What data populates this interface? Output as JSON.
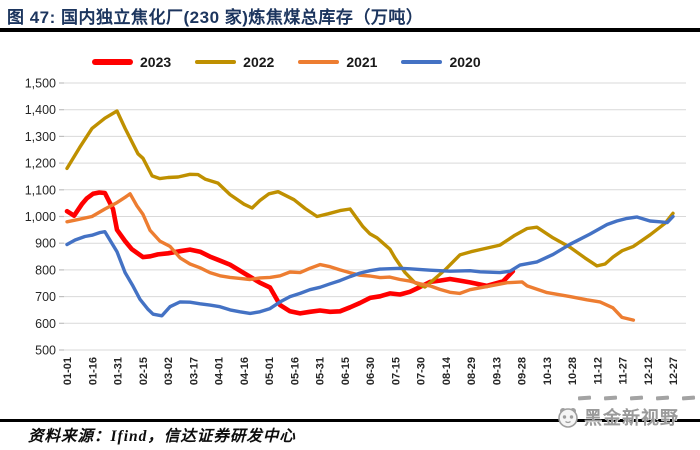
{
  "header": {
    "title": "图 47:  国内独立焦化厂(230 家)炼焦煤总库存（万吨）"
  },
  "footer": {
    "source": "资料来源：Ifind，信达证券研发中心"
  },
  "watermark": {
    "text": "黑金新视野"
  },
  "chart_data": {
    "type": "line",
    "title": "国内独立焦化厂(230 家)炼焦煤总库存（万吨）",
    "xlabel": "",
    "ylabel": "",
    "unit": "万吨",
    "grid": true,
    "legend_position": "top",
    "ylim": [
      500,
      1500
    ],
    "categories": [
      "01-01",
      "01-16",
      "01-31",
      "02-15",
      "03-02",
      "03-17",
      "04-01",
      "04-16",
      "05-01",
      "05-16",
      "05-31",
      "06-15",
      "06-30",
      "07-15",
      "07-30",
      "08-14",
      "08-29",
      "09-13",
      "09-28",
      "10-13",
      "10-28",
      "11-12",
      "11-27",
      "12-12",
      "12-27"
    ],
    "y_axis": {
      "min": 500,
      "max": 1500,
      "step": 100,
      "tick_labels": [
        "1,500",
        "1,400",
        "1,300",
        "1,200",
        "1,100",
        "1,000",
        "900",
        "800",
        "700",
        "600",
        "500"
      ]
    },
    "series": [
      {
        "name": "2023",
        "color": "#ff0000",
        "width": 4.6,
        "points": [
          [
            0,
            1020
          ],
          [
            0.28,
            1003
          ],
          [
            0.6,
            1048
          ],
          [
            0.79,
            1068
          ],
          [
            1.03,
            1085
          ],
          [
            1.28,
            1090
          ],
          [
            1.5,
            1088
          ],
          [
            1.82,
            1028
          ],
          [
            1.98,
            950
          ],
          [
            2.3,
            908
          ],
          [
            2.57,
            877
          ],
          [
            3.01,
            848
          ],
          [
            3.3,
            851
          ],
          [
            3.6,
            858
          ],
          [
            4,
            862
          ],
          [
            4.48,
            870
          ],
          [
            4.87,
            876
          ],
          [
            5.27,
            868
          ],
          [
            5.66,
            850
          ],
          [
            5.98,
            838
          ],
          [
            6.45,
            820
          ],
          [
            7.01,
            788
          ],
          [
            7.64,
            752
          ],
          [
            8.04,
            734
          ],
          [
            8.44,
            668
          ],
          [
            8.83,
            645
          ],
          [
            9.23,
            637
          ],
          [
            9.62,
            643
          ],
          [
            10.02,
            648
          ],
          [
            10.42,
            643
          ],
          [
            10.81,
            645
          ],
          [
            11.21,
            660
          ],
          [
            11.6,
            676
          ],
          [
            12,
            695
          ],
          [
            12.4,
            701
          ],
          [
            12.79,
            712
          ],
          [
            13.19,
            708
          ],
          [
            13.58,
            718
          ],
          [
            13.98,
            736
          ],
          [
            14.38,
            755
          ],
          [
            14.77,
            760
          ],
          [
            15.17,
            766
          ],
          [
            15.56,
            760
          ],
          [
            15.96,
            753
          ],
          [
            16.63,
            740
          ],
          [
            17.27,
            757
          ],
          [
            17.66,
            795
          ]
        ]
      },
      {
        "name": "2022",
        "color": "#bf9000",
        "width": 3.4,
        "points": [
          [
            0,
            1180
          ],
          [
            0.5,
            1258
          ],
          [
            0.99,
            1330
          ],
          [
            1.5,
            1368
          ],
          [
            1.98,
            1395
          ],
          [
            2.3,
            1330
          ],
          [
            2.81,
            1235
          ],
          [
            3.01,
            1218
          ],
          [
            3.37,
            1152
          ],
          [
            3.68,
            1142
          ],
          [
            4,
            1146
          ],
          [
            4.4,
            1148
          ],
          [
            4.87,
            1158
          ],
          [
            5.19,
            1157
          ],
          [
            5.47,
            1140
          ],
          [
            5.98,
            1125
          ],
          [
            6.46,
            1082
          ],
          [
            7.01,
            1046
          ],
          [
            7.33,
            1032
          ],
          [
            7.64,
            1060
          ],
          [
            8,
            1085
          ],
          [
            8.36,
            1093
          ],
          [
            8.99,
            1063
          ],
          [
            9.43,
            1030
          ],
          [
            9.9,
            1000
          ],
          [
            10.34,
            1010
          ],
          [
            10.81,
            1022
          ],
          [
            11.21,
            1028
          ],
          [
            11.72,
            962
          ],
          [
            12,
            935
          ],
          [
            12.28,
            920
          ],
          [
            12.79,
            878
          ],
          [
            12.99,
            845
          ],
          [
            13.39,
            790
          ],
          [
            13.78,
            752
          ],
          [
            14.18,
            736
          ],
          [
            14.46,
            758
          ],
          [
            14.97,
            800
          ],
          [
            15.56,
            856
          ],
          [
            16,
            868
          ],
          [
            16.36,
            876
          ],
          [
            17.15,
            893
          ],
          [
            17.74,
            930
          ],
          [
            18.22,
            955
          ],
          [
            18.61,
            960
          ],
          [
            19.25,
            920
          ],
          [
            19.92,
            885
          ],
          [
            20.51,
            845
          ],
          [
            20.99,
            815
          ],
          [
            21.31,
            822
          ],
          [
            21.62,
            848
          ],
          [
            21.99,
            872
          ],
          [
            22.43,
            888
          ],
          [
            23.1,
            932
          ],
          [
            23.69,
            975
          ],
          [
            24,
            1012
          ]
        ]
      },
      {
        "name": "2021",
        "color": "#ed7d31",
        "width": 3.4,
        "points": [
          [
            0,
            980
          ],
          [
            0.5,
            990
          ],
          [
            0.99,
            1000
          ],
          [
            1.5,
            1028
          ],
          [
            1.98,
            1052
          ],
          [
            2.3,
            1072
          ],
          [
            2.5,
            1085
          ],
          [
            2.77,
            1040
          ],
          [
            3.01,
            1008
          ],
          [
            3.29,
            948
          ],
          [
            3.68,
            908
          ],
          [
            4.08,
            888
          ],
          [
            4.48,
            845
          ],
          [
            4.87,
            822
          ],
          [
            5.27,
            808
          ],
          [
            5.66,
            790
          ],
          [
            6.06,
            778
          ],
          [
            6.46,
            772
          ],
          [
            6.85,
            768
          ],
          [
            7.25,
            764
          ],
          [
            7.64,
            770
          ],
          [
            8.04,
            772
          ],
          [
            8.44,
            778
          ],
          [
            8.83,
            792
          ],
          [
            9.23,
            790
          ],
          [
            9.62,
            806
          ],
          [
            10.02,
            820
          ],
          [
            10.42,
            812
          ],
          [
            10.81,
            800
          ],
          [
            11.21,
            789
          ],
          [
            11.6,
            780
          ],
          [
            12,
            777
          ],
          [
            12.4,
            771
          ],
          [
            12.79,
            773
          ],
          [
            13.19,
            764
          ],
          [
            13.58,
            758
          ],
          [
            13.98,
            748
          ],
          [
            14.38,
            740
          ],
          [
            14.77,
            727
          ],
          [
            15.17,
            716
          ],
          [
            15.56,
            712
          ],
          [
            15.96,
            726
          ],
          [
            16.36,
            733
          ],
          [
            16.76,
            740
          ],
          [
            17.43,
            752
          ],
          [
            18.02,
            755
          ],
          [
            18.22,
            740
          ],
          [
            19.01,
            715
          ],
          [
            19.92,
            700
          ],
          [
            20.59,
            688
          ],
          [
            21.11,
            680
          ],
          [
            21.62,
            658
          ],
          [
            21.98,
            622
          ],
          [
            22.43,
            612
          ]
        ]
      },
      {
        "name": "2020",
        "color": "#4472c4",
        "width": 3.4,
        "points": [
          [
            0,
            895
          ],
          [
            0.32,
            912
          ],
          [
            0.71,
            925
          ],
          [
            0.99,
            930
          ],
          [
            1.31,
            940
          ],
          [
            1.5,
            943
          ],
          [
            1.7,
            912
          ],
          [
            1.98,
            868
          ],
          [
            2.3,
            790
          ],
          [
            2.61,
            740
          ],
          [
            2.89,
            690
          ],
          [
            3.21,
            652
          ],
          [
            3.41,
            634
          ],
          [
            3.76,
            628
          ],
          [
            4.08,
            662
          ],
          [
            4.48,
            680
          ],
          [
            4.87,
            679
          ],
          [
            5.27,
            673
          ],
          [
            5.66,
            668
          ],
          [
            6.06,
            662
          ],
          [
            6.46,
            650
          ],
          [
            6.85,
            643
          ],
          [
            7.25,
            637
          ],
          [
            7.64,
            643
          ],
          [
            8.04,
            655
          ],
          [
            8.44,
            680
          ],
          [
            8.83,
            700
          ],
          [
            9.23,
            712
          ],
          [
            9.62,
            726
          ],
          [
            10.02,
            735
          ],
          [
            10.42,
            748
          ],
          [
            10.81,
            760
          ],
          [
            11.21,
            775
          ],
          [
            11.6,
            788
          ],
          [
            12,
            797
          ],
          [
            12.4,
            803
          ],
          [
            13.19,
            806
          ],
          [
            13.58,
            804
          ],
          [
            14.38,
            799
          ],
          [
            15.17,
            795
          ],
          [
            15.96,
            797
          ],
          [
            16.36,
            793
          ],
          [
            16.87,
            791
          ],
          [
            17.15,
            790
          ],
          [
            17.55,
            795
          ],
          [
            17.94,
            818
          ],
          [
            18.61,
            830
          ],
          [
            19.25,
            858
          ],
          [
            19.92,
            896
          ],
          [
            20.71,
            934
          ],
          [
            21.39,
            970
          ],
          [
            21.78,
            983
          ],
          [
            22.18,
            993
          ],
          [
            22.57,
            998
          ],
          [
            23.09,
            983
          ],
          [
            23.49,
            980
          ],
          [
            23.77,
            977
          ],
          [
            24,
            1000
          ]
        ]
      }
    ]
  }
}
